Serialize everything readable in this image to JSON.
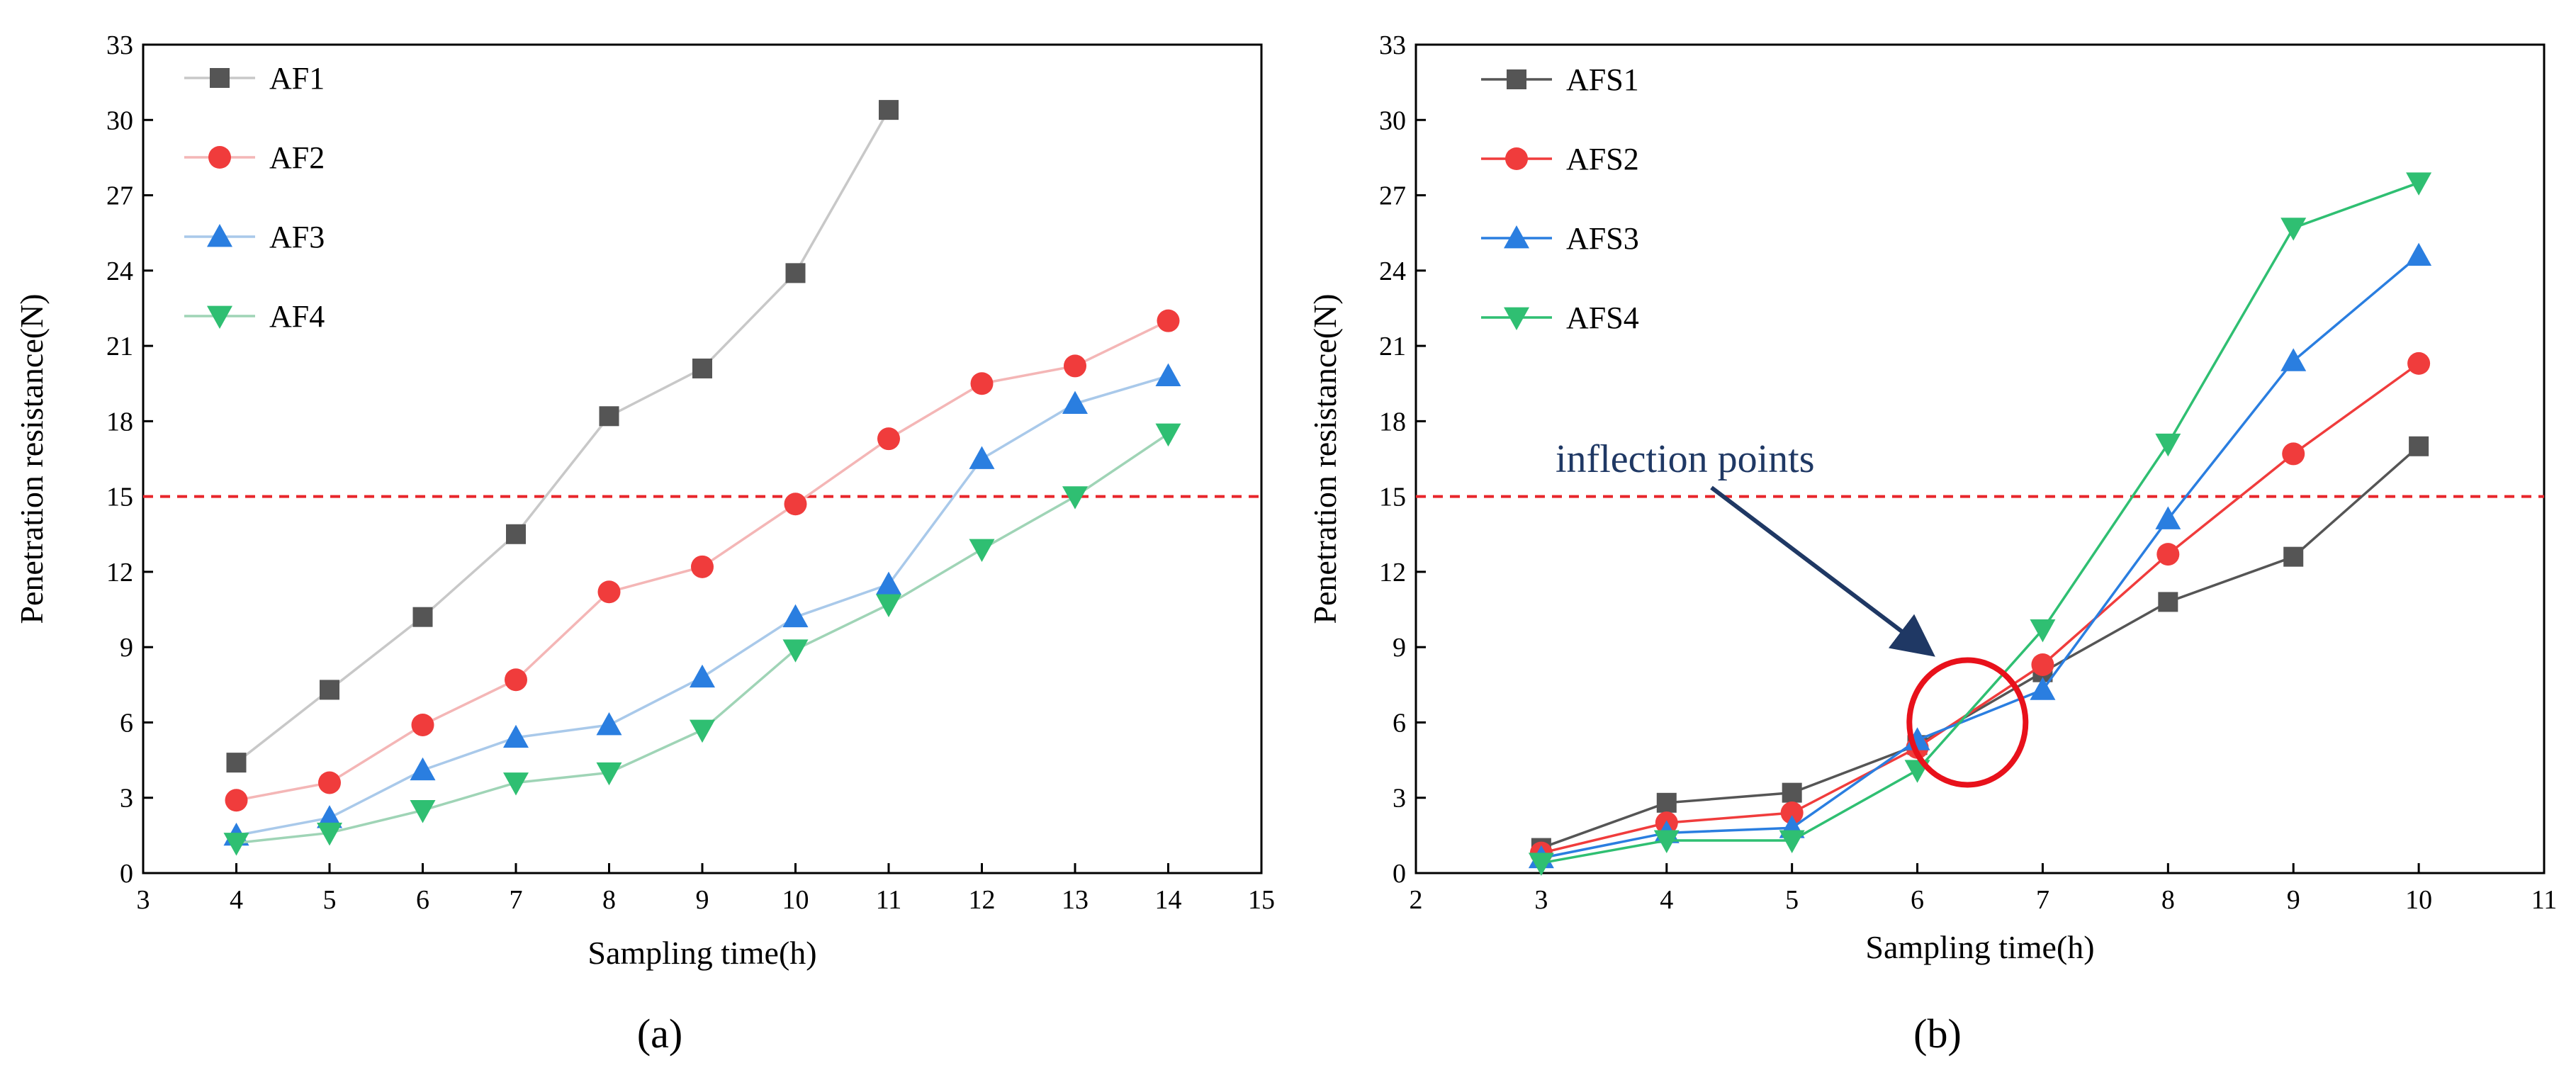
{
  "chart_data": [
    {
      "type": "line",
      "panel_label": "(a)",
      "xlabel": "Sampling time(h)",
      "ylabel": "Penetration resistance(N)",
      "xlim": [
        3,
        15
      ],
      "ylim": [
        0,
        33
      ],
      "xticks": [
        "3",
        "4",
        "5",
        "6",
        "7",
        "8",
        "9",
        "10",
        "11",
        "12",
        "13",
        "14",
        "15"
      ],
      "yticks": [
        "0",
        "3",
        "6",
        "9",
        "12",
        "15",
        "18",
        "21",
        "24",
        "27",
        "30",
        "33"
      ],
      "threshold": 15,
      "legend_position": "top-left",
      "series": [
        {
          "name": "AF1",
          "color": "#c8c8c8",
          "marker_color": "#555555",
          "marker": "square",
          "x": [
            4,
            5,
            6,
            7,
            8,
            9,
            10,
            11
          ],
          "values": [
            4.4,
            7.3,
            10.2,
            13.5,
            18.2,
            20.1,
            23.9,
            30.4
          ]
        },
        {
          "name": "AF2",
          "color": "#f4b6b6",
          "marker_color": "#f03c3c",
          "marker": "circle",
          "x": [
            4,
            5,
            6,
            7,
            8,
            9,
            10,
            11,
            12,
            13,
            14
          ],
          "values": [
            2.9,
            3.6,
            5.9,
            7.7,
            11.2,
            12.2,
            14.7,
            17.3,
            19.5,
            20.2,
            22.0
          ]
        },
        {
          "name": "AF3",
          "color": "#a9c9ea",
          "marker_color": "#2a7ee0",
          "marker": "triangle-up",
          "x": [
            4,
            5,
            6,
            7,
            8,
            9,
            10,
            11,
            12,
            13,
            14
          ],
          "values": [
            1.5,
            2.2,
            4.1,
            5.4,
            5.9,
            7.8,
            10.2,
            11.5,
            16.5,
            18.7,
            19.8
          ]
        },
        {
          "name": "AF4",
          "color": "#9fd4b6",
          "marker_color": "#2fbf72",
          "marker": "triangle-down",
          "x": [
            4,
            5,
            6,
            7,
            8,
            9,
            10,
            11,
            12,
            13,
            14
          ],
          "values": [
            1.2,
            1.6,
            2.5,
            3.6,
            4.0,
            5.7,
            8.9,
            10.7,
            12.9,
            15.0,
            17.5
          ]
        }
      ]
    },
    {
      "type": "line",
      "panel_label": "(b)",
      "xlabel": "Sampling time(h)",
      "ylabel": "Penetration resistance(N)",
      "xlim": [
        2,
        11
      ],
      "ylim": [
        0,
        33
      ],
      "xticks": [
        "2",
        "3",
        "4",
        "5",
        "6",
        "7",
        "8",
        "9",
        "10",
        "11"
      ],
      "yticks": [
        "0",
        "3",
        "6",
        "9",
        "12",
        "15",
        "18",
        "21",
        "24",
        "27",
        "30",
        "33"
      ],
      "threshold": 15,
      "legend_position": "top-left",
      "annotation": {
        "text": "inflection points",
        "target_x": 6.4,
        "target_y": 6.0
      },
      "series": [
        {
          "name": "AFS1",
          "color": "#555555",
          "marker_color": "#555555",
          "marker": "square",
          "x": [
            3,
            4,
            5,
            6,
            7,
            8,
            9,
            10
          ],
          "values": [
            1.0,
            2.8,
            3.2,
            5.1,
            8.0,
            10.8,
            12.6,
            17.0
          ]
        },
        {
          "name": "AFS2",
          "color": "#f03c3c",
          "marker_color": "#f03c3c",
          "marker": "circle",
          "x": [
            3,
            4,
            5,
            6,
            7,
            8,
            9,
            10
          ],
          "values": [
            0.8,
            2.0,
            2.4,
            5.0,
            8.3,
            12.7,
            16.7,
            20.3
          ]
        },
        {
          "name": "AFS3",
          "color": "#2a7ee0",
          "marker_color": "#2a7ee0",
          "marker": "triangle-up",
          "x": [
            3,
            4,
            5,
            6,
            7,
            8,
            9,
            10
          ],
          "values": [
            0.6,
            1.6,
            1.8,
            5.3,
            7.3,
            14.1,
            20.4,
            24.6
          ]
        },
        {
          "name": "AFS4",
          "color": "#2fbf72",
          "marker_color": "#2fbf72",
          "marker": "triangle-down",
          "x": [
            3,
            4,
            5,
            6,
            7,
            8,
            9,
            10
          ],
          "values": [
            0.4,
            1.3,
            1.3,
            4.1,
            9.7,
            17.1,
            25.7,
            27.5
          ]
        }
      ]
    }
  ]
}
